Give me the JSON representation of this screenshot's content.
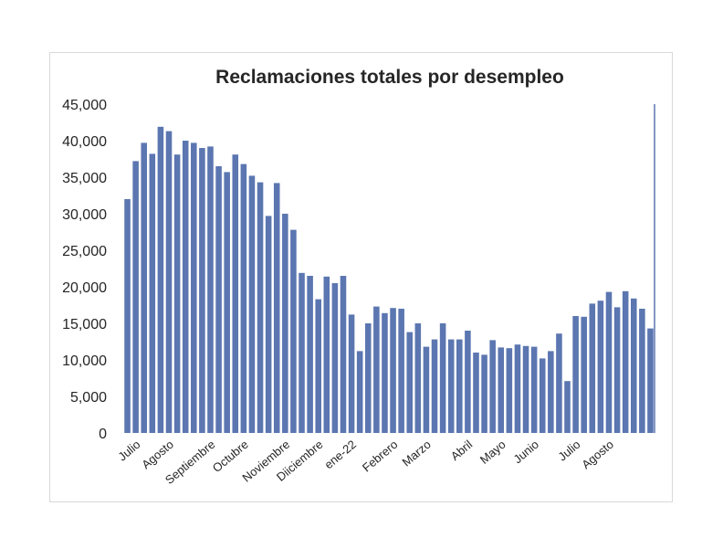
{
  "chart_data": {
    "type": "bar",
    "title": "Reclamaciones totales por desempleo",
    "xlabel": "",
    "ylabel": "",
    "ylim": [
      0,
      45000
    ],
    "yticks": [
      0,
      5000,
      10000,
      15000,
      20000,
      25000,
      30000,
      35000,
      40000,
      45000
    ],
    "ytick_labels": [
      "0",
      "5,000",
      "10,000",
      "15,000",
      "20,000",
      "25,000",
      "30,000",
      "35,000",
      "40,000",
      "45,000"
    ],
    "grid": false,
    "legend": "none",
    "bar_color": "#5b76b0",
    "values": [
      32000,
      37200,
      39700,
      38200,
      41900,
      41300,
      38100,
      40000,
      39700,
      39000,
      39200,
      36500,
      35700,
      38100,
      36800,
      35200,
      34300,
      29700,
      34200,
      30000,
      27800,
      21900,
      21500,
      18300,
      21400,
      20500,
      21500,
      16200,
      11200,
      15000,
      17300,
      16400,
      17100,
      17000,
      13800,
      15000,
      11800,
      12800,
      15000,
      12800,
      12800,
      14000,
      11000,
      10700,
      12700,
      11700,
      11600,
      12100,
      11900,
      11800,
      10200,
      11200,
      13600,
      7100,
      16000,
      15900,
      17700,
      18100,
      19300,
      17200,
      19400,
      18400,
      17000,
      14300
    ],
    "x_labels": [
      {
        "label": "Julio",
        "index": 1
      },
      {
        "label": "Agosto",
        "index": 5
      },
      {
        "label": "Septiembre",
        "index": 10
      },
      {
        "label": "Octubre",
        "index": 14
      },
      {
        "label": "Noviembre",
        "index": 19
      },
      {
        "label": "Diiciembre",
        "index": 23
      },
      {
        "label": "ene-22",
        "index": 27
      },
      {
        "label": "Febrero",
        "index": 32
      },
      {
        "label": "Marzo",
        "index": 36
      },
      {
        "label": "Abril",
        "index": 41
      },
      {
        "label": "Mayo",
        "index": 45
      },
      {
        "label": "Junio",
        "index": 49
      },
      {
        "label": "Julio",
        "index": 54
      },
      {
        "label": "Agosto",
        "index": 58
      }
    ]
  }
}
